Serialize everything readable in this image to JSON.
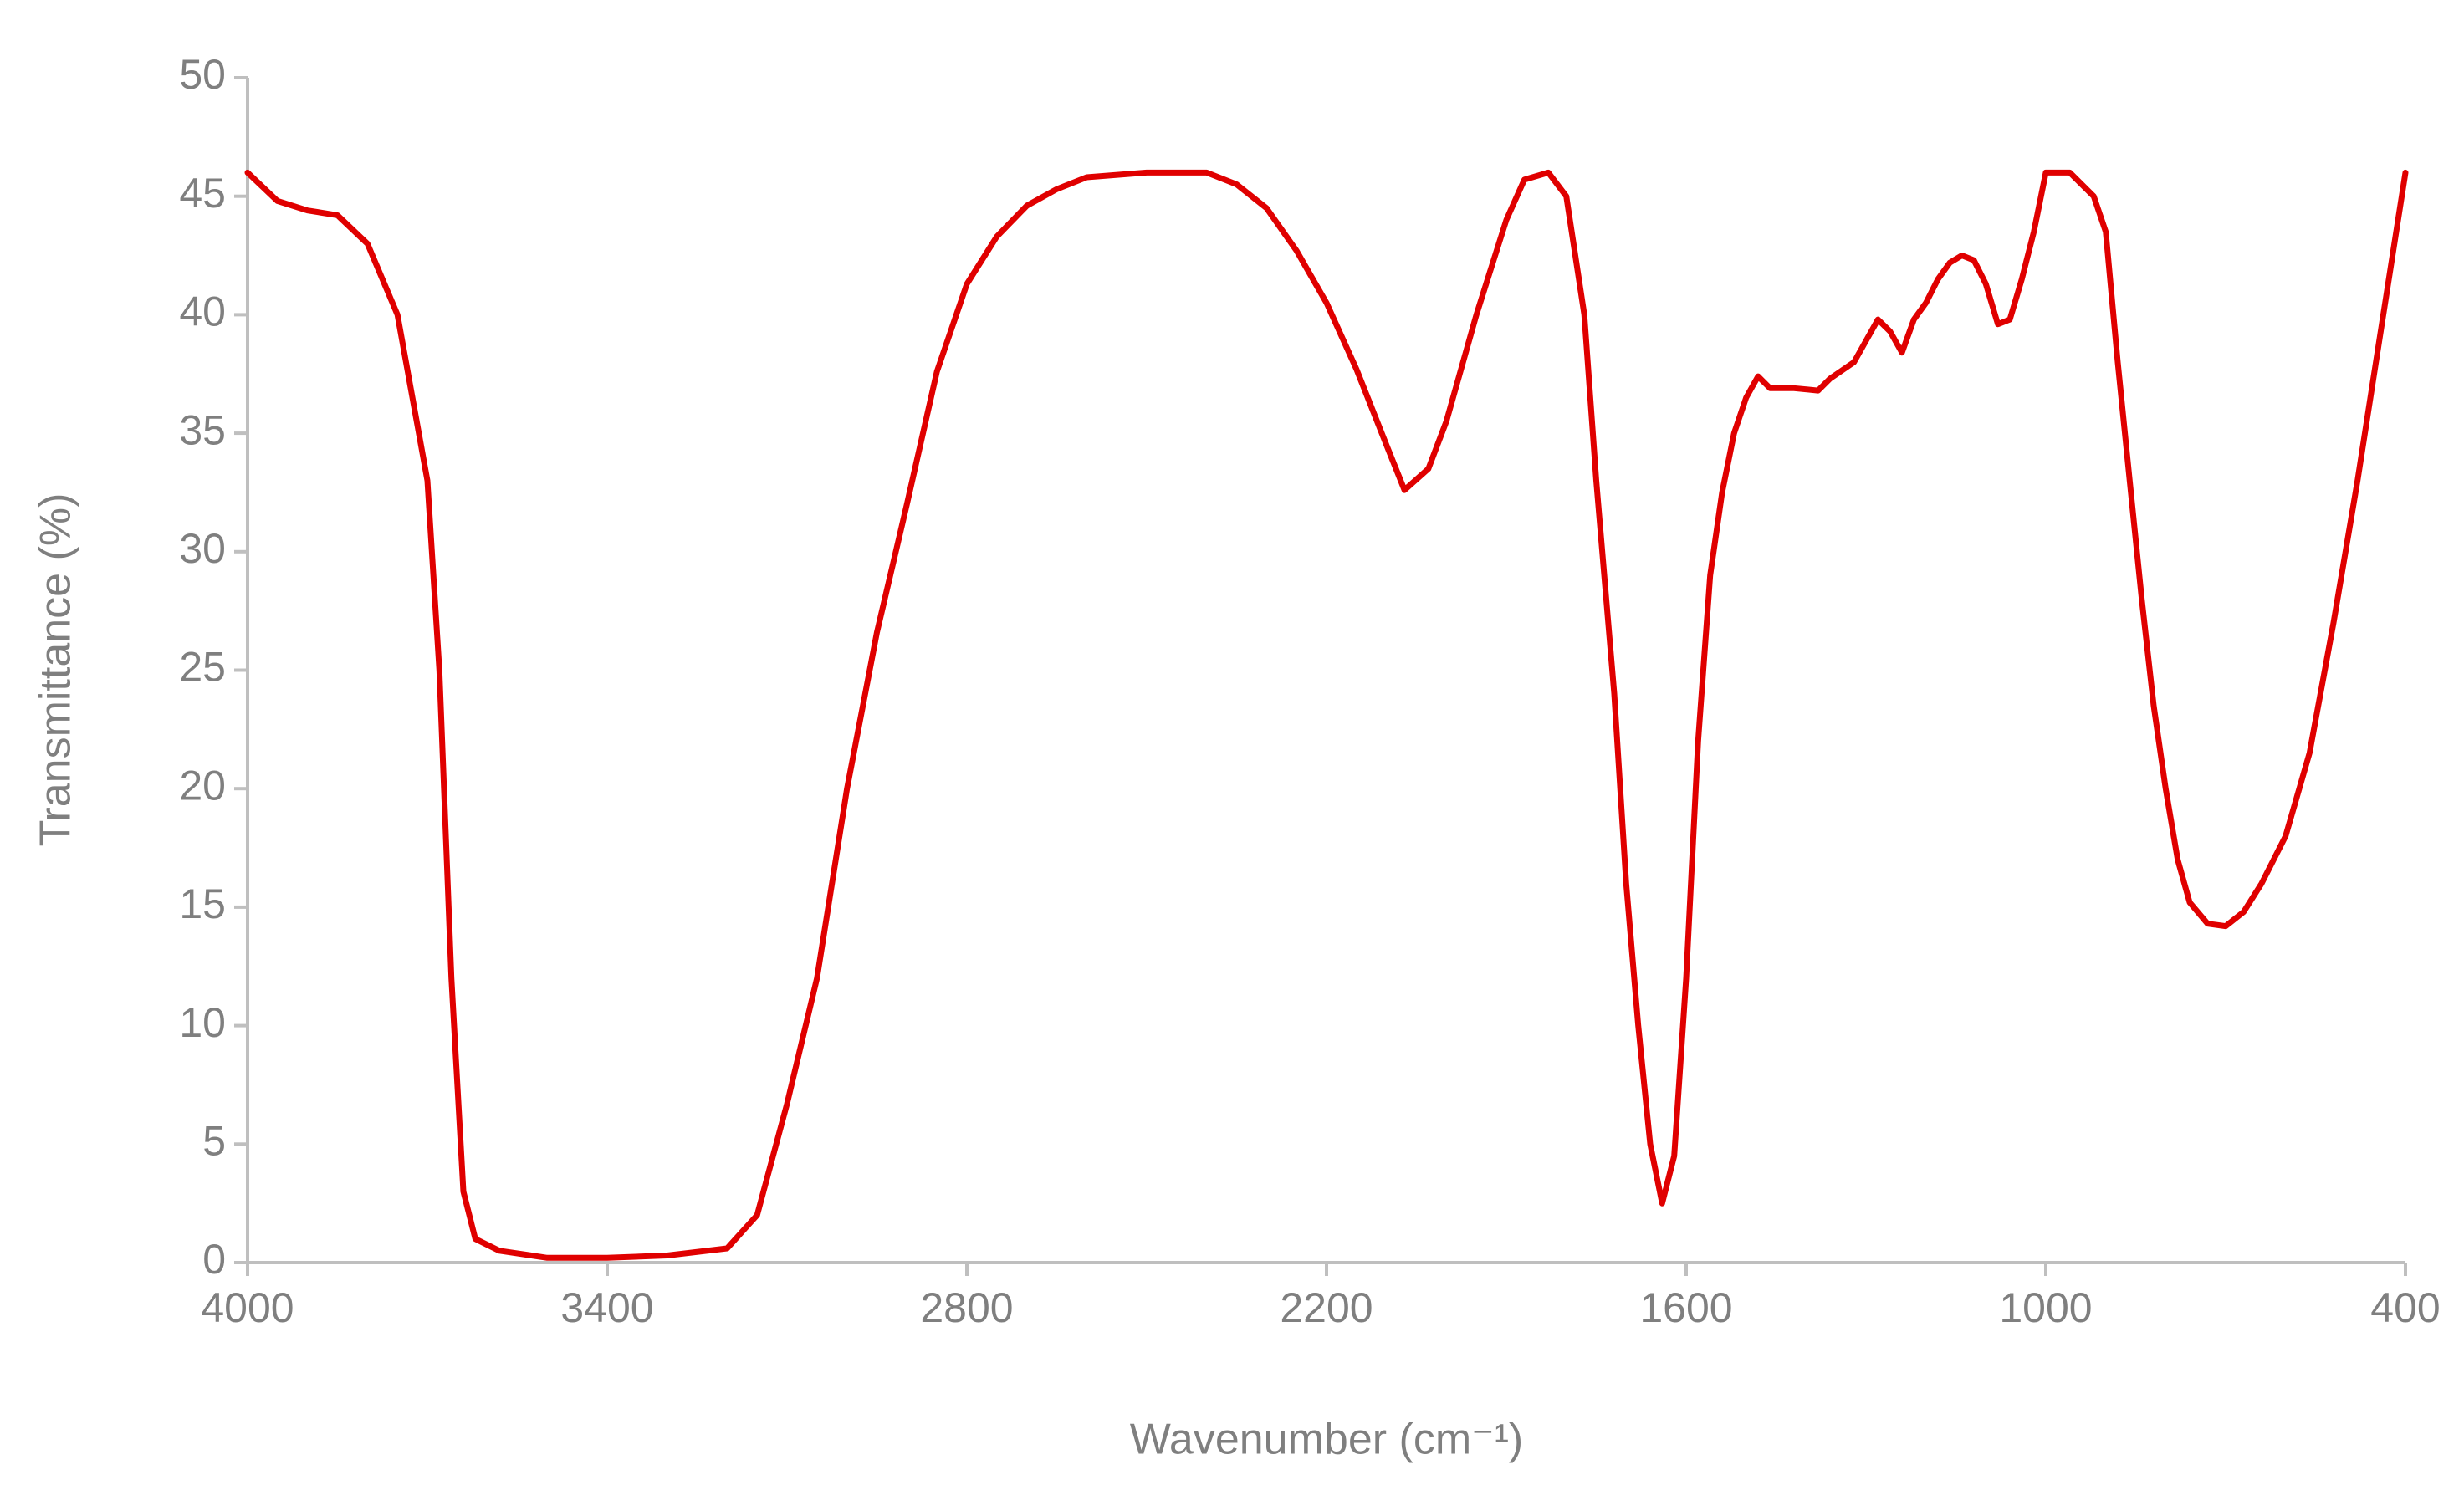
{
  "chart_data": {
    "type": "line",
    "x_label": "Wavenumber (cm⁻¹)",
    "y_label": "Transmittance (%)",
    "xlim": [
      4000,
      400
    ],
    "ylim": [
      0,
      50
    ],
    "xticks": [
      4000,
      3400,
      2800,
      2200,
      1600,
      1000,
      400
    ],
    "yticks": [
      0,
      5,
      10,
      15,
      20,
      25,
      30,
      35,
      40,
      45,
      50
    ],
    "x": [
      4000,
      3950,
      3900,
      3850,
      3800,
      3750,
      3700,
      3680,
      3660,
      3640,
      3620,
      3580,
      3500,
      3400,
      3300,
      3200,
      3150,
      3100,
      3050,
      3000,
      2950,
      2900,
      2850,
      2800,
      2750,
      2700,
      2650,
      2600,
      2500,
      2400,
      2350,
      2300,
      2250,
      2200,
      2150,
      2100,
      2070,
      2030,
      2000,
      1950,
      1900,
      1870,
      1830,
      1800,
      1770,
      1750,
      1720,
      1700,
      1680,
      1660,
      1640,
      1620,
      1600,
      1580,
      1560,
      1540,
      1520,
      1500,
      1480,
      1460,
      1420,
      1380,
      1360,
      1320,
      1280,
      1260,
      1240,
      1220,
      1200,
      1180,
      1160,
      1140,
      1120,
      1100,
      1080,
      1060,
      1040,
      1020,
      1000,
      960,
      920,
      900,
      880,
      860,
      840,
      820,
      800,
      780,
      760,
      730,
      700,
      670,
      640,
      600,
      560,
      520,
      480,
      440,
      400
    ],
    "series": [
      {
        "color": "#e00000",
        "values": [
          46,
          44.8,
          44.4,
          44.2,
          43,
          40,
          33,
          25,
          12,
          3,
          1,
          0.5,
          0.2,
          0.2,
          0.3,
          0.6,
          2,
          6.7,
          12,
          20,
          26.6,
          32,
          37.6,
          41.3,
          43.3,
          44.6,
          45.3,
          45.8,
          46,
          46,
          45.5,
          44.5,
          42.7,
          40.5,
          37.7,
          34.5,
          32.6,
          33.5,
          35.5,
          40,
          44,
          45.7,
          46,
          45,
          40,
          33,
          24,
          16,
          10,
          5,
          2.5,
          4.5,
          12,
          22,
          29,
          32.5,
          35,
          36.5,
          37.4,
          36.9,
          36.9,
          36.8,
          37.3,
          38,
          39.8,
          39.3,
          38.4,
          39.8,
          40.5,
          41.5,
          42.2,
          42.5,
          42.3,
          41.3,
          39.6,
          39.8,
          41.5,
          43.5,
          46,
          46,
          45,
          43.5,
          38,
          33,
          28,
          23.5,
          20,
          17,
          15.2,
          14.3,
          14.2,
          14.8,
          16,
          18,
          21.5,
          27,
          33,
          39.5,
          46
        ]
      }
    ]
  }
}
